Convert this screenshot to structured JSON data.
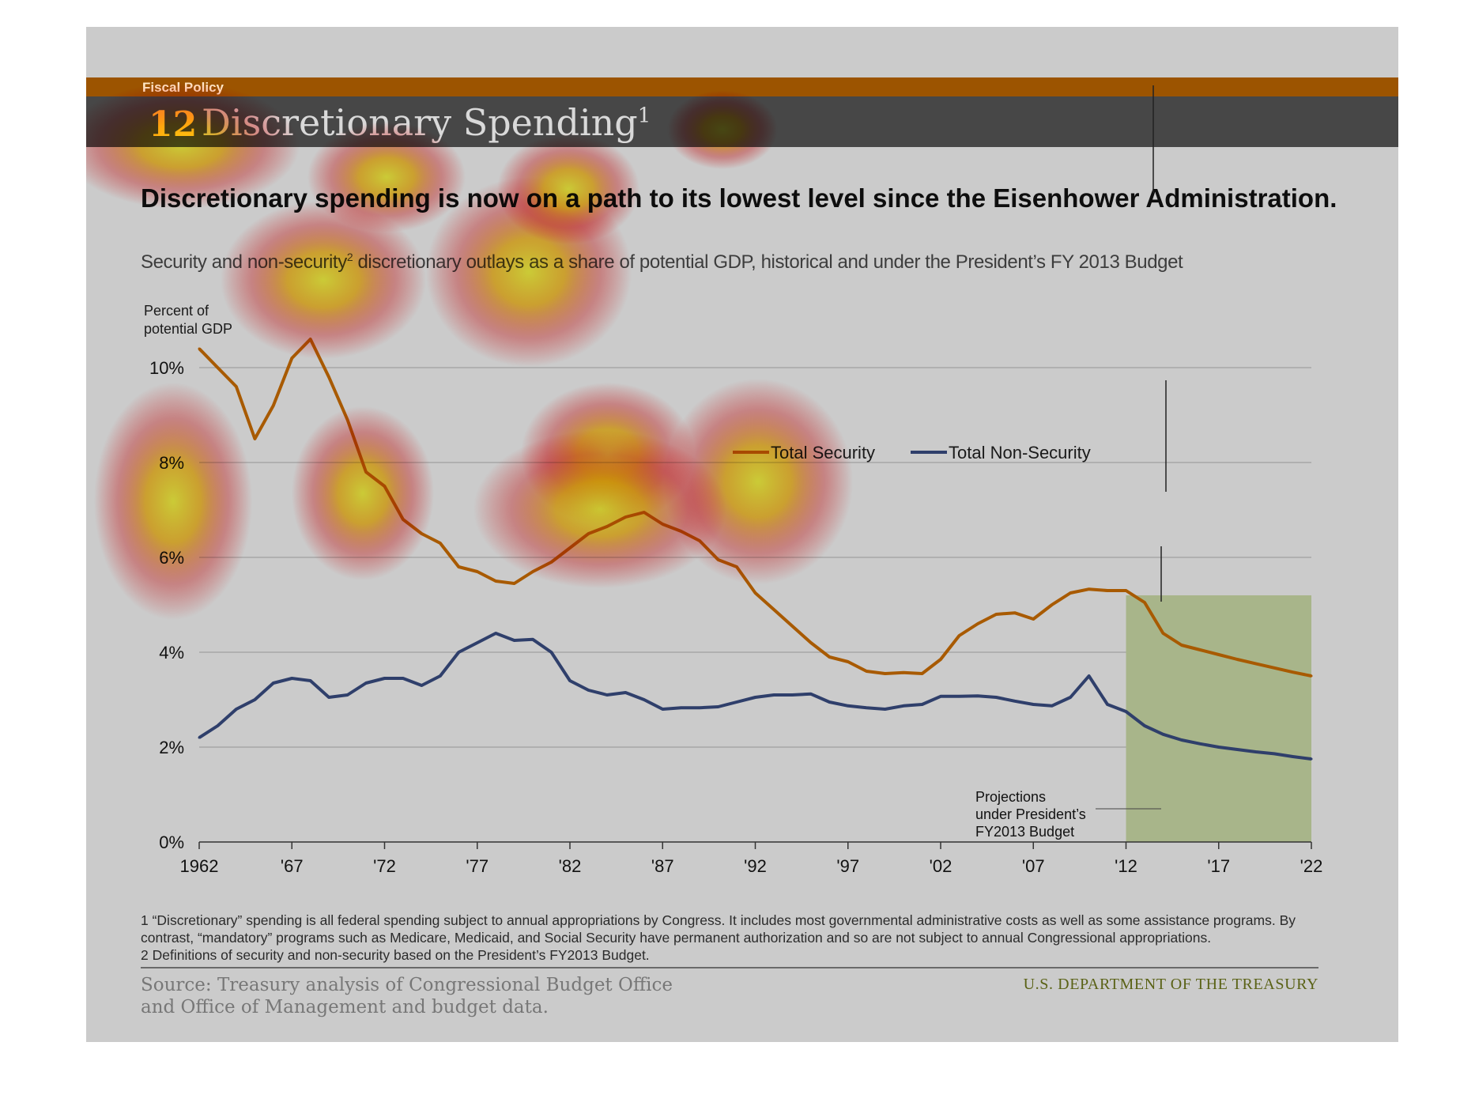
{
  "header": {
    "section": "Fiscal Policy",
    "number": "12",
    "title": "Discretionary Spending",
    "title_sup": "1"
  },
  "headline": "Discretionary spending is now on a path to its lowest level since the Eisenhower Administration.",
  "subtitle": {
    "pre": "Security and non-security",
    "sup": "2",
    "post": " discretionary outlays as a share of potential GDP, historical and under the President’s FY 2013 Budget"
  },
  "chart_data": {
    "type": "line",
    "ylabel": [
      "Percent of",
      "potential GDP"
    ],
    "ylim": [
      0,
      11
    ],
    "yticks": [
      0,
      2,
      4,
      6,
      8,
      10
    ],
    "ytick_labels": [
      "0%",
      "2%",
      "4%",
      "6%",
      "8%",
      "10%"
    ],
    "xlim": [
      1962,
      2022
    ],
    "xticks": [
      1962,
      1967,
      1972,
      1977,
      1982,
      1987,
      1992,
      1997,
      2002,
      2007,
      2012,
      2017,
      2022
    ],
    "xtick_labels": [
      "1962",
      "'67",
      "'72",
      "'77",
      "'82",
      "'87",
      "'92",
      "'97",
      "'02",
      "'07",
      "'12",
      "'17",
      "'22"
    ],
    "grid": "horizontal",
    "legend": "top-right",
    "years": [
      1962,
      1963,
      1964,
      1965,
      1966,
      1967,
      1968,
      1969,
      1970,
      1971,
      1972,
      1973,
      1974,
      1975,
      1976,
      1977,
      1978,
      1979,
      1980,
      1981,
      1982,
      1983,
      1984,
      1985,
      1986,
      1987,
      1988,
      1989,
      1990,
      1991,
      1992,
      1993,
      1994,
      1995,
      1996,
      1997,
      1998,
      1999,
      2000,
      2001,
      2002,
      2003,
      2004,
      2005,
      2006,
      2007,
      2008,
      2009,
      2010,
      2011,
      2012,
      2013,
      2014,
      2015,
      2016,
      2017,
      2018,
      2019,
      2020,
      2021,
      2022
    ],
    "series": [
      {
        "name": "Total Security",
        "color": "#a85a00",
        "values": [
          10.4,
          10.0,
          9.6,
          8.5,
          9.2,
          10.2,
          10.6,
          9.8,
          8.9,
          7.8,
          7.5,
          6.8,
          6.5,
          6.3,
          5.8,
          5.7,
          5.5,
          5.45,
          5.7,
          5.9,
          6.2,
          6.5,
          6.65,
          6.85,
          6.95,
          6.7,
          6.55,
          6.35,
          5.95,
          5.8,
          5.25,
          4.9,
          4.55,
          4.2,
          3.9,
          3.8,
          3.6,
          3.55,
          3.57,
          3.55,
          3.85,
          4.35,
          4.6,
          4.8,
          4.83,
          4.7,
          5.0,
          5.25,
          5.33,
          5.3,
          5.3,
          5.05,
          4.4,
          4.15,
          4.05,
          3.95,
          3.85,
          3.76,
          3.67,
          3.58,
          3.5
        ]
      },
      {
        "name": "Total Non-Security",
        "color": "#2f3f6b",
        "values": [
          2.2,
          2.45,
          2.8,
          3.0,
          3.35,
          3.45,
          3.4,
          3.05,
          3.1,
          3.35,
          3.45,
          3.45,
          3.3,
          3.5,
          4.0,
          4.2,
          4.4,
          4.25,
          4.27,
          4.0,
          3.4,
          3.2,
          3.1,
          3.15,
          3.0,
          2.8,
          2.83,
          2.83,
          2.85,
          2.95,
          3.05,
          3.1,
          3.1,
          3.12,
          2.95,
          2.87,
          2.83,
          2.8,
          2.87,
          2.9,
          3.07,
          3.07,
          3.08,
          3.05,
          2.97,
          2.9,
          2.87,
          3.05,
          3.5,
          2.9,
          2.75,
          2.45,
          2.27,
          2.15,
          2.07,
          2.0,
          1.95,
          1.9,
          1.86,
          1.8,
          1.75
        ]
      }
    ],
    "projection": {
      "start": 2012,
      "end": 2022,
      "label": [
        "Projections",
        "under President’s",
        "FY2013 Budget"
      ],
      "fill": "#a8b58a"
    }
  },
  "footnotes": [
    "1 “Discretionary” spending is all federal spending subject to annual appropriations by Congress. It includes most governmental administrative costs as well as some assistance programs. By",
    "contrast, “mandatory” programs such as Medicare, Medicaid, and Social Security have permanent authorization and so are not subject to annual Congressional appropriations.",
    "2 Definitions of security and non-security based on the President’s FY2013 Budget."
  ],
  "footer": {
    "source": "Source: Treasury analysis of Congressional Budget Office and Office of Management and budget data.",
    "agency": "U.S. DEPARTMENT OF THE TREASURY"
  },
  "colors": {
    "slide_bg": "#cbcbcb",
    "accent_bar": "#9c5400",
    "title_bar": "#474747",
    "projection_fill": "#a8b58a"
  }
}
